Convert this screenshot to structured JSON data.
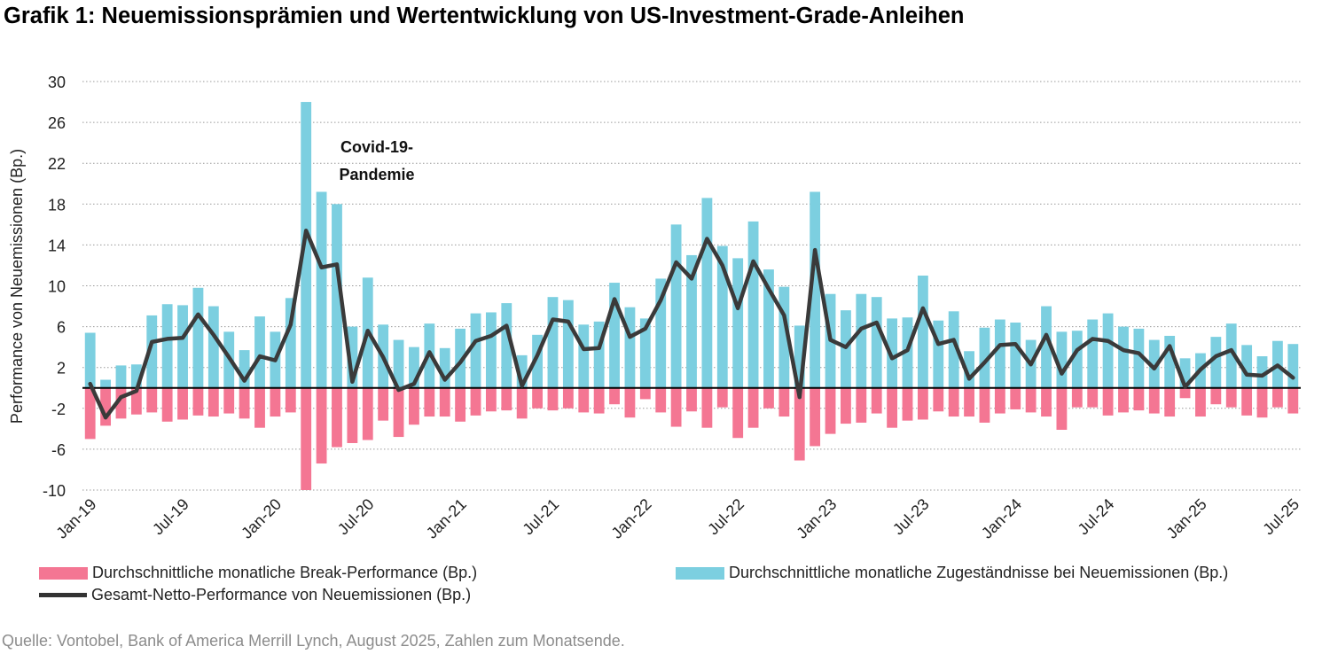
{
  "title": "Grafik 1: Neuemissionsprämien und Wertentwicklung von US-Investment-Grade-Anleihen",
  "source": "Quelle: Vontobel, Bank of America Merrill Lynch, August 2025, Zahlen zum Monatsende.",
  "legend": {
    "break": "Durchschnittliche monatliche Break-Performance (Bp.)",
    "concession": "Durchschnittliche monatliche Zugeständnisse bei Neuemissionen (Bp.)",
    "net": "Gesamt-Netto-Performance von Neuemissionen (Bp.)"
  },
  "colors": {
    "concession": "#7ccfe0",
    "break": "#f47693",
    "net": "#3a3a3a"
  },
  "chart_data": {
    "type": "bar",
    "ylabel": "Performance von Neuemissionen (Bp.)",
    "ylim": [
      -10,
      30
    ],
    "yticks": [
      30,
      26,
      22,
      18,
      14,
      10,
      6,
      2,
      -2,
      -6,
      -10
    ],
    "grid": "horizontal dotted",
    "legend_position": "bottom",
    "annotation": {
      "text_line1": "Covid-19-",
      "text_line2": "Pandemie",
      "x_category": "2020-05"
    },
    "x_tick_labels": [
      {
        "index": 0,
        "label": "Jan-19"
      },
      {
        "index": 6,
        "label": "Jul-19"
      },
      {
        "index": 12,
        "label": "Jan-20"
      },
      {
        "index": 18,
        "label": "Jul-20"
      },
      {
        "index": 24,
        "label": "Jan-21"
      },
      {
        "index": 30,
        "label": "Jul-21"
      },
      {
        "index": 36,
        "label": "Jan-22"
      },
      {
        "index": 42,
        "label": "Jul-22"
      },
      {
        "index": 48,
        "label": "Jan-23"
      },
      {
        "index": 54,
        "label": "Jul-23"
      },
      {
        "index": 60,
        "label": "Jan-24"
      },
      {
        "index": 66,
        "label": "Jul-24"
      },
      {
        "index": 72,
        "label": "Jan-25"
      },
      {
        "index": 78,
        "label": "Jul-25"
      }
    ],
    "categories": [
      "2019-01",
      "2019-02",
      "2019-03",
      "2019-04",
      "2019-05",
      "2019-06",
      "2019-07",
      "2019-08",
      "2019-09",
      "2019-10",
      "2019-11",
      "2019-12",
      "2020-01",
      "2020-02",
      "2020-03",
      "2020-04",
      "2020-05",
      "2020-06",
      "2020-07",
      "2020-08",
      "2020-09",
      "2020-10",
      "2020-11",
      "2020-12",
      "2021-01",
      "2021-02",
      "2021-03",
      "2021-04",
      "2021-05",
      "2021-06",
      "2021-07",
      "2021-08",
      "2021-09",
      "2021-10",
      "2021-11",
      "2021-12",
      "2022-01",
      "2022-02",
      "2022-03",
      "2022-04",
      "2022-05",
      "2022-06",
      "2022-07",
      "2022-08",
      "2022-09",
      "2022-10",
      "2022-11",
      "2022-12",
      "2023-01",
      "2023-02",
      "2023-03",
      "2023-04",
      "2023-05",
      "2023-06",
      "2023-07",
      "2023-08",
      "2023-09",
      "2023-10",
      "2023-11",
      "2023-12",
      "2024-01",
      "2024-02",
      "2024-03",
      "2024-04",
      "2024-05",
      "2024-06",
      "2024-07",
      "2024-08",
      "2024-09",
      "2024-10",
      "2024-11",
      "2024-12",
      "2025-01",
      "2025-02",
      "2025-03",
      "2025-04",
      "2025-05",
      "2025-06",
      "2025-07"
    ],
    "series": [
      {
        "name": "Durchschnittliche monatliche Zugeständnisse bei Neuemissionen (Bp.)",
        "type": "bar",
        "values": [
          5.4,
          0.8,
          2.2,
          2.3,
          7.1,
          8.2,
          8.1,
          9.8,
          8.0,
          5.5,
          3.7,
          7.0,
          5.5,
          8.8,
          28.0,
          19.2,
          18.0,
          6.0,
          10.8,
          6.2,
          4.7,
          4.0,
          6.3,
          3.9,
          5.8,
          7.3,
          7.4,
          8.3,
          3.2,
          5.2,
          8.9,
          8.6,
          6.2,
          6.5,
          10.3,
          7.9,
          6.8,
          10.7,
          16.0,
          13.0,
          18.6,
          13.9,
          12.7,
          16.3,
          11.6,
          9.9,
          6.1,
          19.2,
          9.2,
          7.6,
          9.2,
          8.9,
          6.8,
          6.9,
          11.0,
          6.6,
          7.5,
          3.6,
          5.9,
          6.7,
          6.4,
          4.7,
          8.0,
          5.5,
          5.6,
          6.7,
          7.3,
          6.0,
          5.8,
          4.7,
          5.1,
          2.9,
          3.4,
          5.0,
          6.3,
          4.2,
          3.1,
          4.6,
          4.3
        ]
      },
      {
        "name": "Durchschnittliche monatliche Break-Performance (Bp.)",
        "type": "bar",
        "values": [
          -5.0,
          -3.7,
          -3.0,
          -2.6,
          -2.4,
          -3.3,
          -3.1,
          -2.7,
          -2.8,
          -2.5,
          -3.0,
          -3.9,
          -2.8,
          -2.4,
          -10.0,
          -7.4,
          -5.8,
          -5.4,
          -5.1,
          -3.2,
          -4.8,
          -3.6,
          -2.8,
          -2.8,
          -3.3,
          -2.7,
          -2.3,
          -2.2,
          -3.0,
          -2.0,
          -2.2,
          -2.0,
          -2.4,
          -2.5,
          -1.6,
          -2.9,
          -1.1,
          -2.4,
          -3.8,
          -2.3,
          -3.9,
          -1.9,
          -4.9,
          -3.9,
          -2.0,
          -2.8,
          -7.1,
          -5.7,
          -4.5,
          -3.5,
          -3.4,
          -2.5,
          -3.9,
          -3.2,
          -3.1,
          -2.3,
          -2.8,
          -2.8,
          -3.4,
          -2.5,
          -2.1,
          -2.4,
          -2.8,
          -4.1,
          -1.9,
          -1.9,
          -2.7,
          -2.4,
          -2.2,
          -2.5,
          -2.8,
          -1.0,
          -2.8,
          -1.6,
          -1.9,
          -2.7,
          -2.9,
          -1.9,
          -2.5
        ]
      },
      {
        "name": "Gesamt-Netto-Performance von Neuemissionen (Bp.)",
        "type": "line",
        "values": [
          0.4,
          -2.9,
          -0.9,
          -0.3,
          4.5,
          4.8,
          4.9,
          7.2,
          5.2,
          3.0,
          0.7,
          3.1,
          2.7,
          6.2,
          15.4,
          11.8,
          12.1,
          0.6,
          5.6,
          3.0,
          -0.2,
          0.4,
          3.5,
          0.8,
          2.5,
          4.6,
          5.1,
          6.1,
          0.2,
          3.2,
          6.7,
          6.5,
          3.8,
          3.9,
          8.7,
          5.0,
          5.8,
          8.6,
          12.3,
          10.7,
          14.6,
          12.0,
          7.8,
          12.4,
          9.7,
          7.1,
          -0.9,
          13.5,
          4.7,
          4.0,
          5.8,
          6.4,
          2.9,
          3.7,
          7.8,
          4.3,
          4.7,
          0.9,
          2.5,
          4.2,
          4.3,
          2.3,
          5.2,
          1.4,
          3.7,
          4.8,
          4.6,
          3.7,
          3.4,
          1.9,
          4.1,
          0.1,
          1.8,
          3.1,
          3.7,
          1.3,
          1.2,
          2.2,
          1.0
        ]
      }
    ]
  }
}
